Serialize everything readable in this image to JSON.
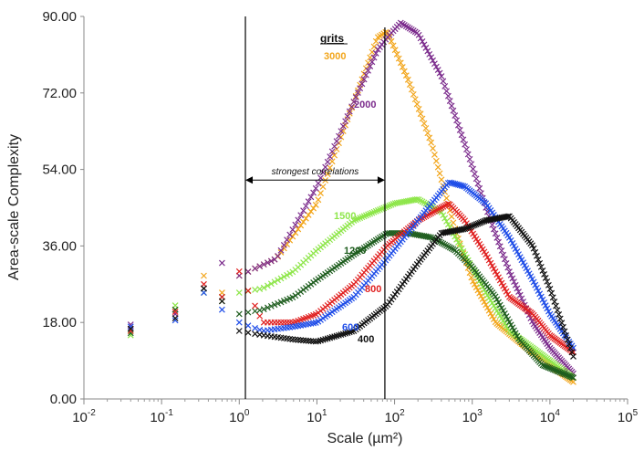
{
  "chart_data": {
    "type": "scatter",
    "title": "",
    "xlabel": "Scale (µm²)",
    "ylabel": "Area-scale Complexity",
    "xscale": "log",
    "xlim": [
      0.01,
      100000
    ],
    "ylim": [
      0,
      90
    ],
    "ytick_labels": [
      "0.00",
      "18.00",
      "36.00",
      "54.00",
      "72.00",
      "90.00"
    ],
    "xtick_labels": [
      {
        "base": "10",
        "exp": "-2"
      },
      {
        "base": "10",
        "exp": "-1"
      },
      {
        "base": "10",
        "exp": "0"
      },
      {
        "base": "10",
        "exp": "1"
      },
      {
        "base": "10",
        "exp": "2"
      },
      {
        "base": "10",
        "exp": "3"
      },
      {
        "base": "10",
        "exp": "4"
      },
      {
        "base": "10",
        "exp": "5"
      }
    ],
    "legend_title": "grits",
    "correlation_label": "strongest correlations",
    "correlation_range": [
      1.2,
      75
    ],
    "marker": "x",
    "series": [
      {
        "name": "3000",
        "color": "#f2a51a",
        "anchors": [
          [
            0.04,
            16.5
          ],
          [
            0.15,
            21
          ],
          [
            0.35,
            29
          ],
          [
            0.6,
            25
          ],
          [
            1,
            29
          ],
          [
            3,
            33
          ],
          [
            10,
            46
          ],
          [
            30,
            70
          ],
          [
            60,
            85
          ],
          [
            80,
            86.5
          ],
          [
            150,
            75
          ],
          [
            300,
            60
          ],
          [
            600,
            40
          ],
          [
            1000,
            28
          ],
          [
            2000,
            18
          ],
          [
            5000,
            12
          ],
          [
            10000,
            8
          ],
          [
            20000,
            4
          ]
        ]
      },
      {
        "name": "2000",
        "color": "#7b2b8c",
        "anchors": [
          [
            0.04,
            17.5
          ],
          [
            0.15,
            20
          ],
          [
            0.35,
            26
          ],
          [
            0.6,
            32
          ],
          [
            1,
            29
          ],
          [
            3,
            33
          ],
          [
            10,
            50
          ],
          [
            30,
            70
          ],
          [
            60,
            82
          ],
          [
            80,
            85
          ],
          [
            120,
            88.5
          ],
          [
            200,
            86
          ],
          [
            400,
            76
          ],
          [
            800,
            60
          ],
          [
            1500,
            45
          ],
          [
            3000,
            30
          ],
          [
            6000,
            18
          ],
          [
            10000,
            12
          ],
          [
            20000,
            6
          ]
        ]
      },
      {
        "name": "1500",
        "color": "#8ee64a",
        "anchors": [
          [
            0.04,
            15
          ],
          [
            0.15,
            22
          ],
          [
            0.35,
            25
          ],
          [
            0.6,
            23
          ],
          [
            1,
            25
          ],
          [
            2,
            26
          ],
          [
            5,
            30
          ],
          [
            10,
            35
          ],
          [
            30,
            42
          ],
          [
            100,
            46
          ],
          [
            200,
            47
          ],
          [
            400,
            44
          ],
          [
            700,
            36
          ],
          [
            1500,
            25
          ],
          [
            3000,
            16
          ],
          [
            6000,
            12
          ],
          [
            10000,
            9
          ],
          [
            20000,
            5
          ]
        ]
      },
      {
        "name": "1200",
        "color": "#1f5e1f",
        "anchors": [
          [
            0.04,
            15.5
          ],
          [
            0.15,
            21
          ],
          [
            0.35,
            26
          ],
          [
            0.6,
            24
          ],
          [
            1,
            20
          ],
          [
            2,
            21
          ],
          [
            5,
            24
          ],
          [
            10,
            28
          ],
          [
            30,
            34
          ],
          [
            80,
            39
          ],
          [
            150,
            39
          ],
          [
            300,
            38
          ],
          [
            600,
            35
          ],
          [
            1000,
            31
          ],
          [
            2000,
            24
          ],
          [
            4000,
            14
          ],
          [
            8000,
            8
          ],
          [
            20000,
            5
          ]
        ]
      },
      {
        "name": "800",
        "color": "#e02020",
        "anchors": [
          [
            0.04,
            16
          ],
          [
            0.15,
            20.5
          ],
          [
            0.35,
            27
          ],
          [
            0.6,
            24
          ],
          [
            1,
            30
          ],
          [
            2,
            18
          ],
          [
            5,
            18
          ],
          [
            10,
            20
          ],
          [
            30,
            27
          ],
          [
            80,
            36
          ],
          [
            200,
            42
          ],
          [
            500,
            46
          ],
          [
            800,
            42
          ],
          [
            1500,
            34
          ],
          [
            3000,
            24
          ],
          [
            6000,
            20
          ],
          [
            10000,
            15
          ],
          [
            20000,
            11
          ]
        ]
      },
      {
        "name": "600",
        "color": "#1f4de8",
        "anchors": [
          [
            0.04,
            17
          ],
          [
            0.15,
            18.5
          ],
          [
            0.35,
            25
          ],
          [
            0.6,
            21
          ],
          [
            1,
            18
          ],
          [
            2,
            16
          ],
          [
            5,
            17
          ],
          [
            10,
            18
          ],
          [
            30,
            24
          ],
          [
            80,
            33
          ],
          [
            200,
            42
          ],
          [
            500,
            51
          ],
          [
            800,
            50
          ],
          [
            1500,
            46
          ],
          [
            3000,
            38
          ],
          [
            6000,
            28
          ],
          [
            10000,
            20
          ],
          [
            20000,
            12
          ]
        ]
      },
      {
        "name": "400",
        "color": "#111111",
        "anchors": [
          [
            0.04,
            16.5
          ],
          [
            0.15,
            19
          ],
          [
            0.35,
            26
          ],
          [
            0.6,
            23
          ],
          [
            1,
            16
          ],
          [
            2,
            15
          ],
          [
            5,
            14
          ],
          [
            10,
            13.5
          ],
          [
            30,
            16
          ],
          [
            80,
            22
          ],
          [
            200,
            32
          ],
          [
            400,
            39
          ],
          [
            800,
            40
          ],
          [
            1500,
            42
          ],
          [
            3000,
            43
          ],
          [
            6000,
            36
          ],
          [
            10000,
            26
          ],
          [
            20000,
            10
          ]
        ]
      }
    ]
  }
}
